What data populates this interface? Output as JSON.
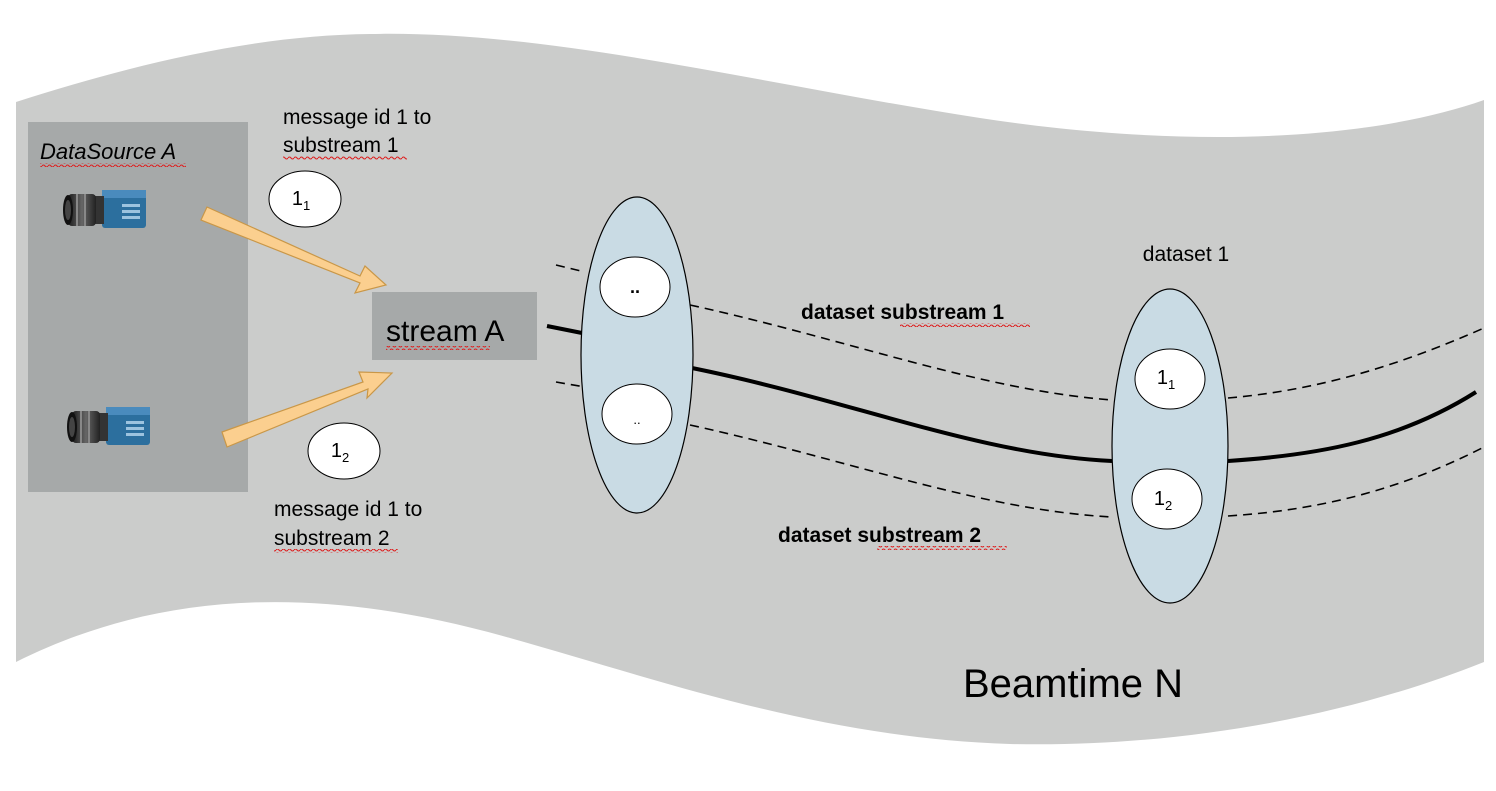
{
  "beamtime": {
    "label": "Beamtime N"
  },
  "datasource": {
    "label": "DataSource A"
  },
  "stream": {
    "label_word": "stream",
    "label_letter": "A"
  },
  "messages": {
    "top": {
      "line1": "message id 1 to",
      "line2": "substream 1",
      "id": "1",
      "sub": "1"
    },
    "bottom": {
      "line1": "message id 1 to",
      "line2": "substream 2",
      "id": "1",
      "sub": "2"
    }
  },
  "pending_group": {
    "top_label": "..",
    "bottom_label": ".."
  },
  "dataset": {
    "title": "dataset 1",
    "msg1": {
      "id": "1",
      "sub": "1"
    },
    "msg2": {
      "id": "1",
      "sub": "2"
    }
  },
  "substreams": {
    "one": {
      "prefix": "dataset ",
      "word": "substream",
      "suffix": " 1"
    },
    "two": {
      "prefix": "dataset ",
      "word": "substream",
      "suffix": " 2"
    }
  },
  "colors": {
    "background_band": "#cbcccb",
    "datasource_panel": "#a6a9a9",
    "stream_box": "#a6a9a9",
    "ellipse_fill": "#c9dbe4",
    "arrow_fill": "#fbcf8f",
    "arrow_stroke": "#c99748",
    "camera_body": "#2c6f9e",
    "spellcheck_underline": "#dd2222"
  },
  "icons": {
    "camera": "camera-icon",
    "arrow": "arrow-icon"
  }
}
